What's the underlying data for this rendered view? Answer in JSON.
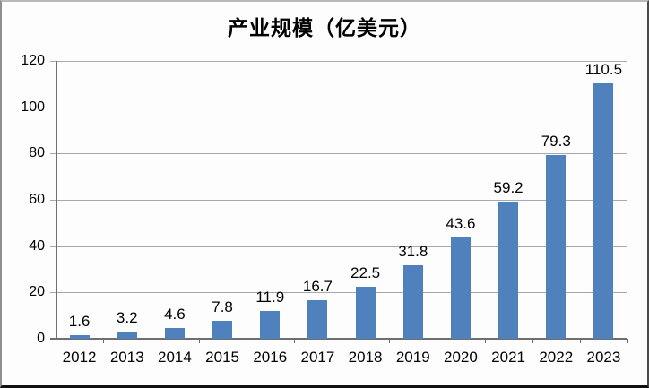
{
  "chart_data": {
    "type": "bar",
    "title": "产业规模（亿美元）",
    "categories": [
      "2012",
      "2013",
      "2014",
      "2015",
      "2016",
      "2017",
      "2018",
      "2019",
      "2020",
      "2021",
      "2022",
      "2023"
    ],
    "values": [
      1.6,
      3.2,
      4.6,
      7.8,
      11.9,
      16.7,
      22.5,
      31.8,
      43.6,
      59.2,
      79.3,
      110.5
    ],
    "value_labels": [
      "1.6",
      "3.2",
      "4.6",
      "7.8",
      "11.9",
      "16.7",
      "22.5",
      "31.8",
      "43.6",
      "59.2",
      "79.3",
      "110.5"
    ],
    "xlabel": "",
    "ylabel": "",
    "ylim": [
      0,
      120
    ],
    "ytick_step": 20,
    "ytick_labels": [
      "0",
      "20",
      "40",
      "60",
      "80",
      "100",
      "120"
    ],
    "grid": true,
    "legend": "none",
    "bar_color": "#4f81bd",
    "gridline_color": "#a8a8a8",
    "axis_color": "#6f6f6f",
    "label_color": "#000000"
  }
}
